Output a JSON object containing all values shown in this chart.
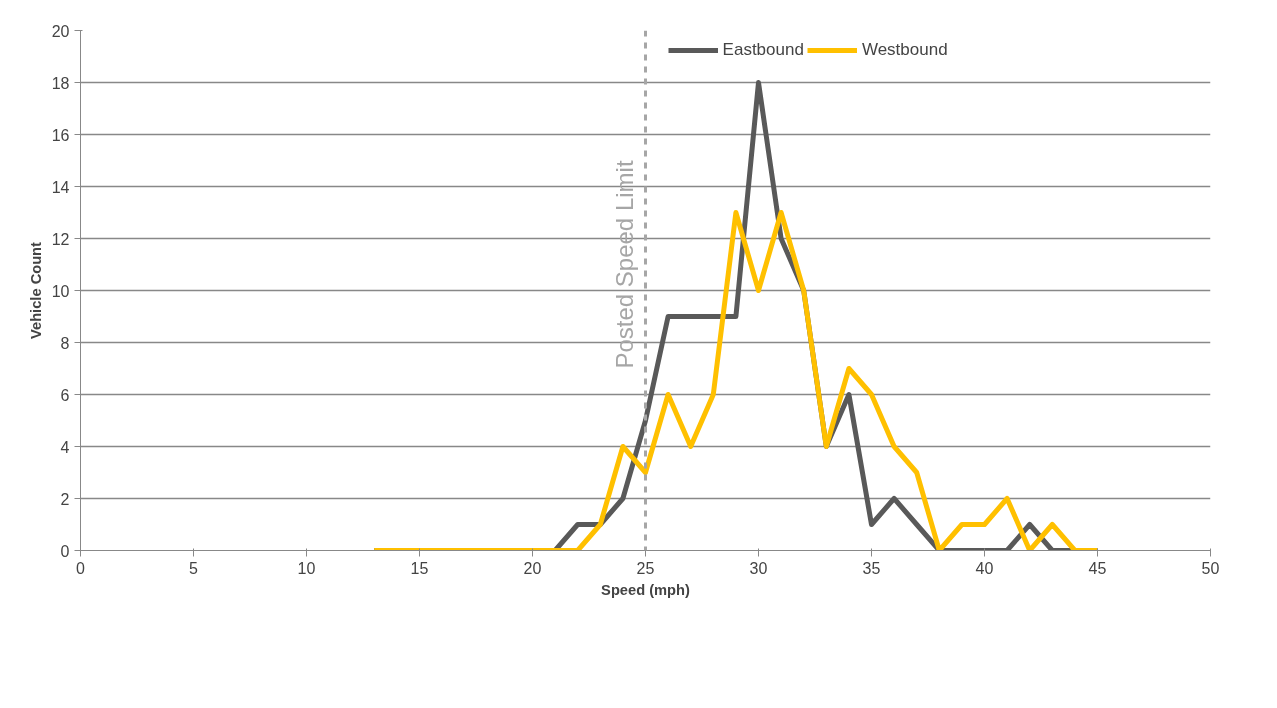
{
  "chart_data": {
    "type": "line",
    "xlabel": "Speed (mph)",
    "ylabel": "Vehicle Count",
    "x": [
      13,
      14,
      15,
      16,
      17,
      18,
      19,
      20,
      21,
      22,
      23,
      24,
      25,
      26,
      27,
      28,
      29,
      30,
      31,
      32,
      33,
      34,
      35,
      36,
      37,
      38,
      39,
      40,
      41,
      42,
      43,
      44,
      45
    ],
    "series": [
      {
        "name": "Eastbound",
        "color": "#595959",
        "values": [
          0,
          0,
          0,
          0,
          0,
          0,
          0,
          0,
          0,
          1,
          1,
          2,
          5,
          9,
          9,
          9,
          9,
          18,
          12,
          10,
          4,
          6,
          1,
          2,
          1,
          0,
          0,
          0,
          0,
          1,
          0,
          0,
          0
        ]
      },
      {
        "name": "Westbound",
        "color": "#ffc000",
        "values": [
          0,
          0,
          0,
          0,
          0,
          0,
          0,
          0,
          0,
          0,
          1,
          4,
          3,
          6,
          4,
          6,
          13,
          10,
          13,
          10,
          4,
          7,
          6,
          4,
          3,
          0,
          1,
          1,
          2,
          0,
          1,
          0,
          0
        ]
      }
    ],
    "xlim": [
      0,
      50
    ],
    "xticks": [
      0,
      5,
      10,
      15,
      20,
      25,
      30,
      35,
      40,
      45,
      50
    ],
    "ylim": [
      0,
      20
    ],
    "yticks": [
      0,
      2,
      4,
      6,
      8,
      10,
      12,
      14,
      16,
      18,
      20
    ],
    "ref_lines": [
      {
        "axis": "x",
        "value": 25,
        "label": "Posted Speed Limit",
        "color": "#a6a6a6",
        "line_style": "dashed"
      }
    ],
    "grid": "y",
    "legend": "top",
    "marker": "none",
    "line_style": "solid"
  }
}
